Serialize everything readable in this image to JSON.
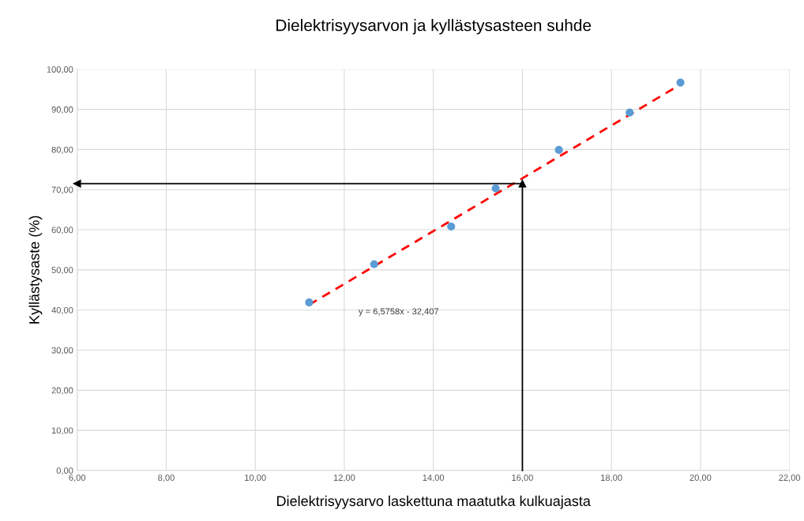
{
  "chart_data": {
    "type": "scatter",
    "title": "Dielektrisyysarvon ja kyllästysasteen suhde",
    "xlabel": "Dielektrisyysarvo laskettuna maatutka kulkuajasta",
    "ylabel": "Kyllästysaste (%)",
    "x": [
      11.21,
      12.67,
      14.4,
      15.4,
      16.82,
      18.41,
      19.55
    ],
    "series": [
      {
        "color": "#5b9bd5",
        "values": [
          41.9,
          51.4,
          60.8,
          70.3,
          79.9,
          89.2,
          96.7
        ]
      },
      {
        "type": "line",
        "color": "#ff0000",
        "line_style": "dashed",
        "x": [
          11.21,
          19.55
        ],
        "values": [
          41.3,
          96.2
        ]
      },
      {
        "type": "line",
        "color": "#000000",
        "marker": "triangle",
        "x": [
          16,
          16
        ],
        "values": [
          0,
          71.5
        ]
      },
      {
        "type": "line",
        "color": "#000000",
        "marker": "triangle",
        "x": [
          16,
          6
        ],
        "values": [
          71.5,
          71.5
        ]
      }
    ],
    "annotations": [
      "y = 6,5758x - 32,407"
    ],
    "xlim": [
      6,
      22
    ],
    "ylim": [
      0,
      100
    ],
    "xticks": [
      {
        "value": 6,
        "label": "6,00"
      },
      {
        "value": 8,
        "label": "8,00"
      },
      {
        "value": 10,
        "label": "10,00"
      },
      {
        "value": 12,
        "label": "12,00"
      },
      {
        "value": 14,
        "label": "14,00"
      },
      {
        "value": 16,
        "label": "16,00"
      },
      {
        "value": 18,
        "label": "18,00"
      },
      {
        "value": 20,
        "label": "20,00"
      },
      {
        "value": 22,
        "label": "22,00"
      }
    ],
    "yticks": [
      {
        "value": 0,
        "label": "0,00"
      },
      {
        "value": 10,
        "label": "10,00"
      },
      {
        "value": 20,
        "label": "20,00"
      },
      {
        "value": 30,
        "label": "30,00"
      },
      {
        "value": 40,
        "label": "40,00"
      },
      {
        "value": 50,
        "label": "50,00"
      },
      {
        "value": 60,
        "label": "60,00"
      },
      {
        "value": 70,
        "label": "70,00"
      },
      {
        "value": 80,
        "label": "80,00"
      },
      {
        "value": 90,
        "label": "90,00"
      },
      {
        "value": 100,
        "label": "100,00"
      }
    ],
    "grid": true,
    "legend": false
  }
}
